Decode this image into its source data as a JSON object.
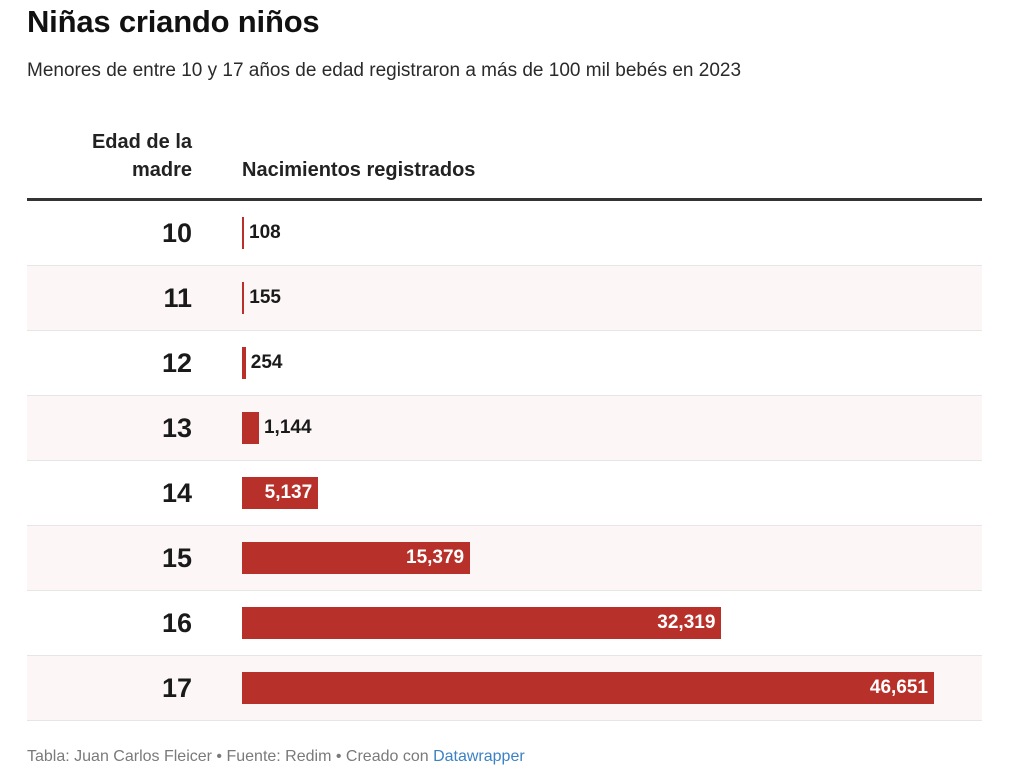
{
  "header": {
    "title": "Niñas criando niños",
    "subtitle": "Menores de entre 10 y 17 años de edad registraron a más de 100 mil bebés en 2023"
  },
  "table": {
    "col_age": "Edad de la madre",
    "col_births": "Nacimientos registrados"
  },
  "colors": {
    "bar": "#b8302a",
    "row_alt": "#fcf7f6"
  },
  "chart_data": {
    "type": "bar",
    "orientation": "horizontal",
    "categories": [
      "10",
      "11",
      "12",
      "13",
      "14",
      "15",
      "16",
      "17"
    ],
    "values": [
      108,
      155,
      254,
      1144,
      5137,
      15379,
      32319,
      46651
    ],
    "labels": [
      "108",
      "155",
      "254",
      "1,144",
      "5,137",
      "15,379",
      "32,319",
      "46,651"
    ],
    "title": "Niñas criando niños",
    "xlabel": "Nacimientos registrados",
    "ylabel": "Edad de la madre",
    "xlim": [
      0,
      48200
    ],
    "grid": false
  },
  "footer": {
    "credit": "Tabla: Juan Carlos Fleicer",
    "source": "Fuente: Redim",
    "created_with": "Creado con",
    "tool": "Datawrapper"
  }
}
